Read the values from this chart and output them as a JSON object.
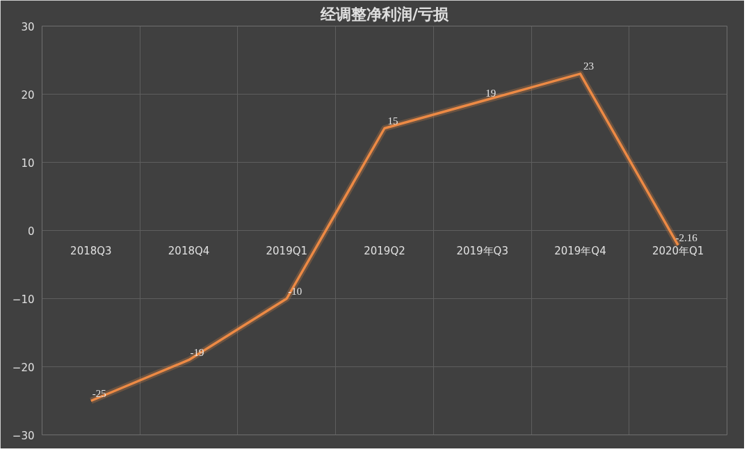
{
  "chart_data": {
    "type": "line",
    "title": "经调整净利润/亏损",
    "categories": [
      "2018Q3",
      "2018Q4",
      "2019Q1",
      "2019Q2",
      "2019年Q3",
      "2019年Q4",
      "2020年Q1"
    ],
    "series": [
      {
        "color": "#ed8a45",
        "values": [
          -25,
          -19,
          -10,
          15,
          19,
          23,
          -2.16
        ]
      }
    ],
    "ylim": [
      -30,
      30
    ],
    "yticks": [
      -30,
      -20,
      -10,
      0,
      10,
      20,
      30
    ],
    "grid": true,
    "data_labels": true,
    "marker": "none",
    "line_style": "solid"
  }
}
